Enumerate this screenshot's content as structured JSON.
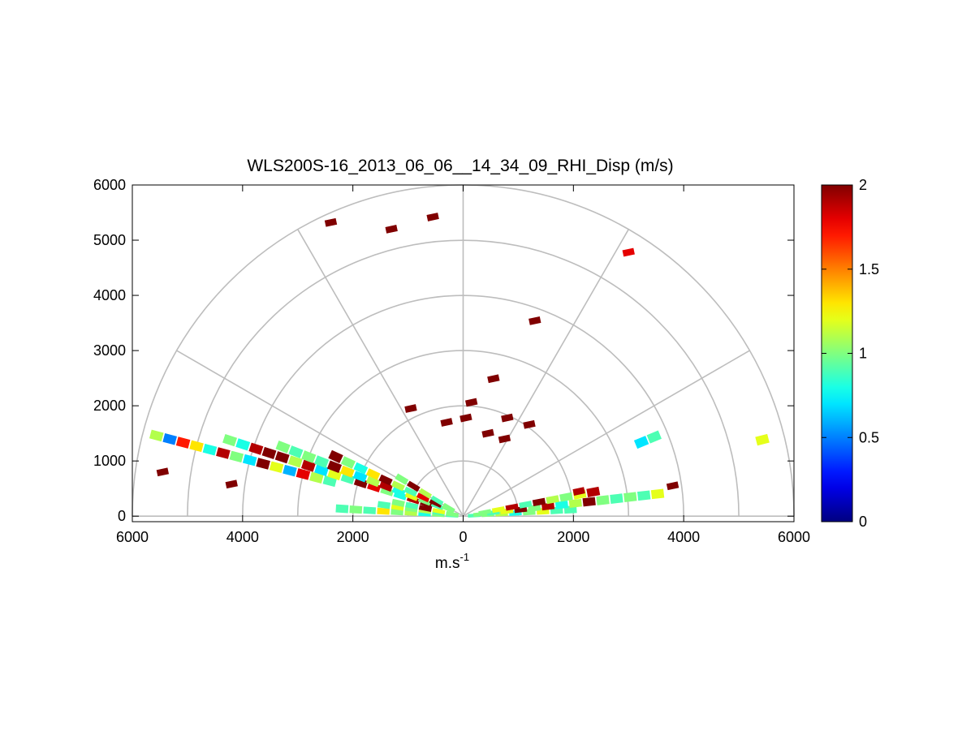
{
  "chart_data": {
    "type": "rhi-polar-scatter",
    "title": "WLS200S-16_2013_06_06__14_34_09_RHI_Disp (m/s)",
    "xlabel_base": "m.s",
    "xlabel_exp": "-1",
    "ylabel": "",
    "xlim": [
      -6000,
      6000
    ],
    "ylim": [
      -100,
      6000
    ],
    "x_ticks": [
      -6000,
      -4000,
      -2000,
      0,
      2000,
      4000,
      6000
    ],
    "x_tick_labels": [
      "6000",
      "4000",
      "2000",
      "0",
      "2000",
      "4000",
      "6000"
    ],
    "y_ticks": [
      0,
      1000,
      2000,
      3000,
      4000,
      5000,
      6000
    ],
    "y_tick_labels": [
      "0",
      "1000",
      "2000",
      "3000",
      "4000",
      "5000",
      "6000"
    ],
    "polar_rings": [
      1000,
      2000,
      3000,
      4000,
      5000,
      6000
    ],
    "polar_spokes_deg": [
      0,
      30,
      60,
      90,
      120,
      150,
      180
    ],
    "colorbar": {
      "min": 0,
      "max": 2,
      "ticks": [
        0,
        0.5,
        1,
        1.5,
        2
      ],
      "tick_labels": [
        "0",
        "0.5",
        "1",
        "1.5",
        "2"
      ],
      "colormap": "jet"
    },
    "beams": [
      {
        "elevation_deg": 165.3,
        "r_start": 2500,
        "r_end": 5750,
        "value_pattern": [
          0.9,
          1.1,
          1.8,
          0.6,
          1.2,
          2.0,
          0.7,
          1.0,
          1.9,
          0.8,
          1.3,
          1.7,
          0.5,
          1.1
        ]
      },
      {
        "elevation_deg": 162.0,
        "r_start": 700,
        "r_end": 4650,
        "value_pattern": [
          2.0,
          1.9,
          0.8,
          1.0,
          1.8,
          2.0,
          0.9,
          1.2,
          0.7,
          1.9,
          1.1,
          2.0
        ]
      },
      {
        "elevation_deg": 159.0,
        "r_start": 500,
        "r_end": 3600,
        "value_pattern": [
          0.9,
          1.0,
          1.2,
          0.8,
          1.9,
          1.1,
          0.7,
          1.3,
          2.0,
          0.9,
          1.0
        ]
      },
      {
        "elevation_deg": 155.0,
        "r_start": 300,
        "r_end": 2600,
        "value_pattern": [
          1.0,
          2.0,
          1.8,
          0.9,
          1.1,
          2.0,
          1.3,
          0.8
        ]
      },
      {
        "elevation_deg": 149.0,
        "r_start": 300,
        "r_end": 1400,
        "value_pattern": [
          1.0,
          0.9,
          1.1,
          2.0,
          1.0
        ]
      },
      {
        "elevation_deg": 176.5,
        "r_start": 200,
        "r_end": 2350,
        "value_pattern": [
          0.9,
          1.0,
          0.8,
          1.1,
          1.0,
          1.3,
          0.9,
          1.0
        ]
      },
      {
        "elevation_deg": 172.0,
        "r_start": 200,
        "r_end": 1600,
        "value_pattern": [
          1.0,
          0.9,
          1.1,
          1.0,
          1.2,
          0.9
        ]
      },
      {
        "elevation_deg": 168.5,
        "r_start": 200,
        "r_end": 1200,
        "value_pattern": [
          1.0,
          1.2,
          2.0,
          0.9,
          1.0
        ]
      },
      {
        "elevation_deg": 3.5,
        "r_start": 200,
        "r_end": 2000,
        "value_pattern": [
          0.9,
          1.0,
          1.1,
          0.8,
          1.0,
          1.2,
          0.9
        ]
      },
      {
        "elevation_deg": 6.5,
        "r_start": 300,
        "r_end": 3700,
        "value_pattern": [
          1.0,
          0.9,
          1.2,
          2.0,
          1.0,
          1.9,
          0.8,
          1.1,
          2.0,
          1.0,
          0.9
        ]
      },
      {
        "elevation_deg": 10.5,
        "r_start": 400,
        "r_end": 2600,
        "value_pattern": [
          1.0,
          1.2,
          1.9,
          0.9,
          2.0,
          1.1
        ]
      },
      {
        "elevation_deg": 22.5,
        "r_start": 3500,
        "r_end": 3750,
        "value_pattern": [
          0.7,
          0.9
        ]
      },
      {
        "elevation_deg": 14.3,
        "r_start": 5600,
        "r_end": 5800,
        "value_pattern": [
          1.2,
          1.1
        ]
      }
    ],
    "points": [
      {
        "x": -5450,
        "y": 800,
        "v": 2.0
      },
      {
        "x": -4200,
        "y": 580,
        "v": 2.0
      },
      {
        "x": -2400,
        "y": 5320,
        "v": 2.0
      },
      {
        "x": -1300,
        "y": 5200,
        "v": 2.0
      },
      {
        "x": -550,
        "y": 5420,
        "v": 2.0
      },
      {
        "x": 3000,
        "y": 4780,
        "v": 1.8
      },
      {
        "x": 1300,
        "y": 3540,
        "v": 2.0
      },
      {
        "x": 550,
        "y": 2490,
        "v": 2.0
      },
      {
        "x": 150,
        "y": 2060,
        "v": 2.0
      },
      {
        "x": -950,
        "y": 1950,
        "v": 2.0
      },
      {
        "x": -300,
        "y": 1700,
        "v": 2.0
      },
      {
        "x": 50,
        "y": 1780,
        "v": 2.0
      },
      {
        "x": 800,
        "y": 1780,
        "v": 2.0
      },
      {
        "x": 1200,
        "y": 1660,
        "v": 2.0
      },
      {
        "x": 750,
        "y": 1400,
        "v": 2.0
      },
      {
        "x": 450,
        "y": 1500,
        "v": 2.0
      },
      {
        "x": 3800,
        "y": 550,
        "v": 2.0
      },
      {
        "x": 2100,
        "y": 450,
        "v": 1.9
      }
    ]
  }
}
